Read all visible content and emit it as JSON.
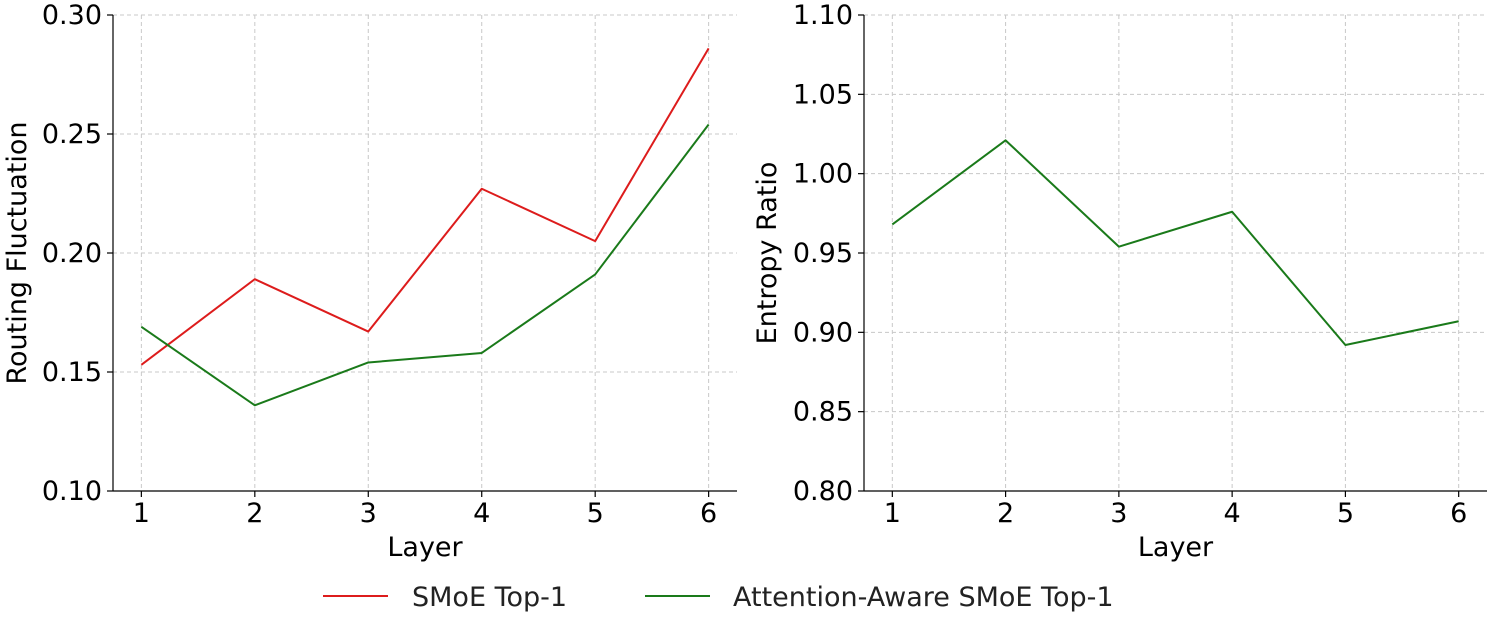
{
  "chart_data": [
    {
      "type": "line",
      "xlabel": "Layer",
      "ylabel": "Routing Fluctuation",
      "x": [
        1,
        2,
        3,
        4,
        5,
        6
      ],
      "xticks": [
        "1",
        "2",
        "3",
        "4",
        "5",
        "6"
      ],
      "ylim": [
        0.1,
        0.3
      ],
      "yticks": [
        0.1,
        0.15,
        0.2,
        0.25,
        0.3
      ],
      "ytick_labels": [
        "0.10",
        "0.15",
        "0.20",
        "0.25",
        "0.30"
      ],
      "grid": true,
      "series": [
        {
          "name": "SMoE Top-1",
          "color": "#dd1c1c",
          "values": [
            0.153,
            0.189,
            0.167,
            0.227,
            0.205,
            0.286
          ]
        },
        {
          "name": "Attention-Aware SMoE Top-1",
          "color": "#1a7a1a",
          "values": [
            0.169,
            0.136,
            0.154,
            0.158,
            0.191,
            0.254
          ]
        }
      ]
    },
    {
      "type": "line",
      "xlabel": "Layer",
      "ylabel": "Entropy Ratio",
      "x": [
        1,
        2,
        3,
        4,
        5,
        6
      ],
      "xticks": [
        "1",
        "2",
        "3",
        "4",
        "5",
        "6"
      ],
      "ylim": [
        0.8,
        1.1
      ],
      "yticks": [
        0.8,
        0.85,
        0.9,
        0.95,
        1.0,
        1.05,
        1.1
      ],
      "ytick_labels": [
        "0.80",
        "0.85",
        "0.90",
        "0.95",
        "1.00",
        "1.05",
        "1.10"
      ],
      "grid": true,
      "series": [
        {
          "color": "#1a7a1a",
          "values": [
            0.968,
            1.021,
            0.954,
            0.976,
            0.892,
            0.907
          ]
        }
      ]
    }
  ],
  "legend": {
    "placement": "bottom-center",
    "items": [
      {
        "label": "SMoE Top-1",
        "color": "#dd1c1c"
      },
      {
        "label": "Attention-Aware SMoE Top-1",
        "color": "#1a7a1a"
      }
    ]
  }
}
